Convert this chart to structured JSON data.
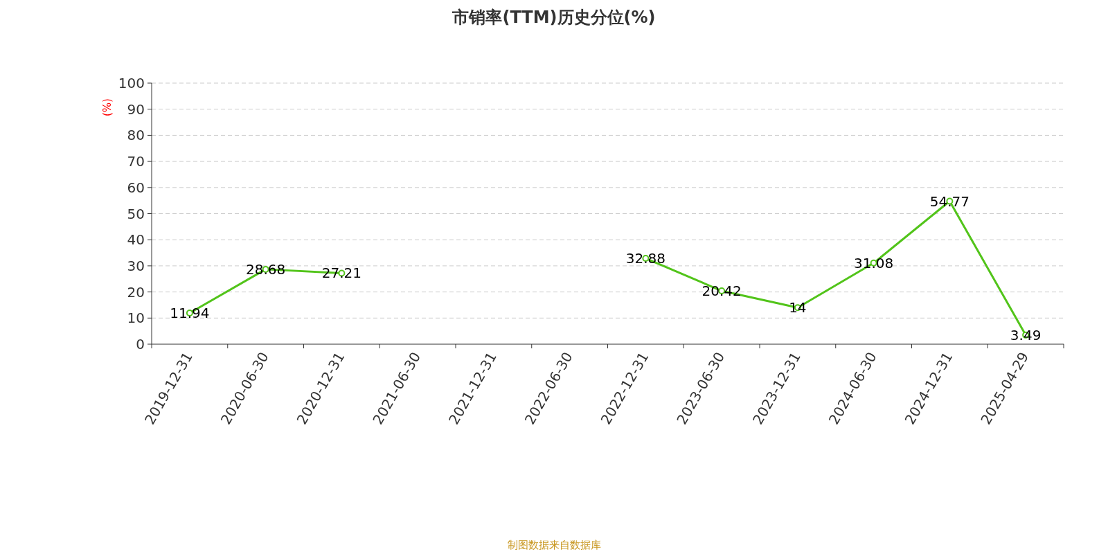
{
  "chart_data": {
    "type": "line",
    "title": "市销率(TTM)历史分位(%)",
    "ylabel": "(%)",
    "categories": [
      "2019-12-31",
      "2020-06-30",
      "2020-12-31",
      "2021-06-30",
      "2021-12-31",
      "2022-06-30",
      "2022-12-31",
      "2023-06-30",
      "2023-12-31",
      "2024-06-30",
      "2024-12-31",
      "2025-04-29"
    ],
    "series": [
      {
        "color": "#52c41a",
        "values": [
          11.94,
          28.68,
          27.21,
          null,
          null,
          null,
          32.88,
          20.42,
          14,
          31.08,
          54.77,
          3.49
        ]
      }
    ],
    "ylim": [
      0,
      100
    ],
    "yticks": [
      0,
      10,
      20,
      30,
      40,
      50,
      60,
      70,
      80,
      90,
      100
    ],
    "grid": "y",
    "marker": "circle",
    "line_style": "solid",
    "data_labels": true,
    "annotations": [
      "制图数据来自数据库"
    ]
  }
}
